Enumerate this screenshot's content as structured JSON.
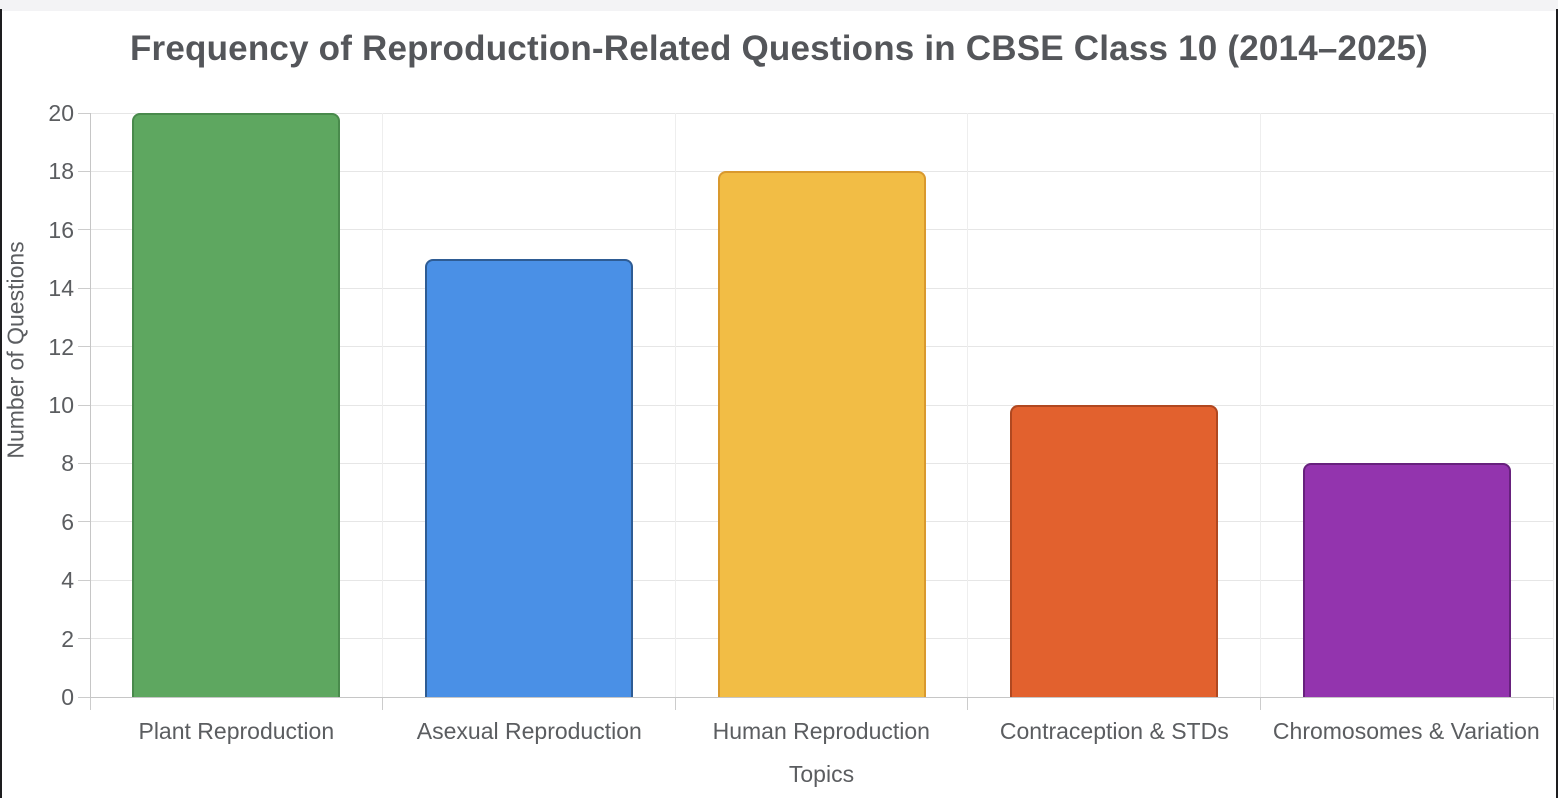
{
  "window": {
    "top_strip_color": "#f3f3f5",
    "edge_color": "#1d1d1f",
    "background": "#ffffff"
  },
  "chart_data": {
    "type": "bar",
    "title": "Frequency of Reproduction-Related Questions in CBSE Class 10 (2014–2025)",
    "xlabel": "Topics",
    "ylabel": "Number of Questions",
    "categories": [
      "Plant Reproduction",
      "Asexual Reproduction",
      "Human Reproduction",
      "Contraception & STDs",
      "Chromosomes & Variation"
    ],
    "values": [
      20,
      15,
      18,
      10,
      8
    ],
    "ylim": [
      0,
      20
    ],
    "ytick_step": 2,
    "y_ticks": [
      0,
      2,
      4,
      6,
      8,
      10,
      12,
      14,
      16,
      18,
      20
    ],
    "grid": true,
    "legend": false,
    "bars": [
      {
        "label": "Plant Reproduction",
        "value": 20,
        "fill": "#5ea760",
        "border": "#498a4c"
      },
      {
        "label": "Asexual Reproduction",
        "value": 15,
        "fill": "#4a90e6",
        "border": "#2e5c94"
      },
      {
        "label": "Human Reproduction",
        "value": 18,
        "fill": "#f2bd45",
        "border": "#d9992e"
      },
      {
        "label": "Contraception & STDs",
        "value": 10,
        "fill": "#e2612e",
        "border": "#b04820"
      },
      {
        "label": "Chromosomes & Variation",
        "value": 8,
        "fill": "#9334ae",
        "border": "#67217d"
      }
    ],
    "colors": {
      "title_text": "#54565a",
      "tick_text": "#5b5d60",
      "gridline_h": "#e6e6e6",
      "gridline_v": "#eeeeee",
      "axis_line": "#c6c6c6",
      "tick_mark": "#cccccc"
    }
  }
}
